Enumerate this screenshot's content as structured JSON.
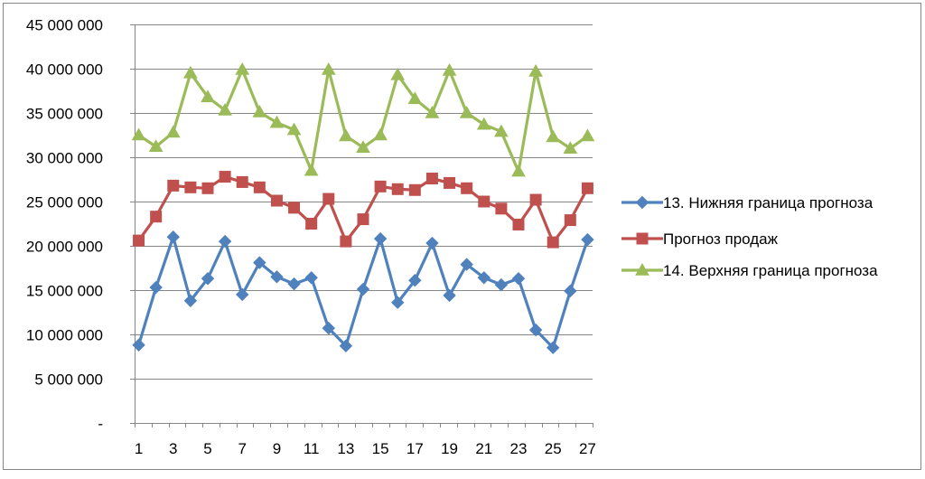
{
  "chart_data": {
    "type": "line",
    "x": [
      1,
      2,
      3,
      4,
      5,
      6,
      7,
      8,
      9,
      10,
      11,
      12,
      13,
      14,
      15,
      16,
      17,
      18,
      19,
      20,
      21,
      22,
      23,
      24,
      25,
      26,
      27
    ],
    "x_tick_labels": [
      "1",
      "3",
      "5",
      "7",
      "9",
      "11",
      "13",
      "15",
      "17",
      "19",
      "21",
      "23",
      "25",
      "27"
    ],
    "y_tick_labels": [
      "-",
      "5 000 000",
      "10 000 000",
      "15 000 000",
      "20 000 000",
      "25 000 000",
      "30 000 000",
      "35 000 000",
      "40 000 000",
      "45 000 000"
    ],
    "ylim": [
      0,
      45000000
    ],
    "y_tick_step": 5000000,
    "grid": "horizontal",
    "legend_position": "right",
    "series": [
      {
        "name": "13. Нижняя граница прогноза",
        "color": "#4F81BD",
        "marker": "diamond",
        "values": [
          8800000,
          15300000,
          21000000,
          13800000,
          16300000,
          20500000,
          14500000,
          18100000,
          16500000,
          15700000,
          16400000,
          10700000,
          8700000,
          15100000,
          20800000,
          13600000,
          16100000,
          20300000,
          14400000,
          17900000,
          16400000,
          15600000,
          16300000,
          10500000,
          8500000,
          14900000,
          20700000
        ]
      },
      {
        "name": "Прогноз продаж",
        "color": "#C0504D",
        "marker": "square",
        "values": [
          20600000,
          23300000,
          26800000,
          26600000,
          26500000,
          27800000,
          27200000,
          26600000,
          25100000,
          24300000,
          22500000,
          25300000,
          20500000,
          23000000,
          26700000,
          26400000,
          26300000,
          27600000,
          27100000,
          26500000,
          25000000,
          24200000,
          22400000,
          25200000,
          20400000,
          22900000,
          26500000
        ]
      },
      {
        "name": "14. Верхняя граница прогноза",
        "color": "#9BBB59",
        "marker": "triangle",
        "values": [
          32500000,
          31200000,
          32800000,
          39500000,
          36800000,
          35300000,
          39900000,
          35100000,
          33900000,
          33100000,
          28500000,
          39900000,
          32400000,
          31100000,
          32500000,
          39300000,
          36600000,
          35000000,
          39800000,
          35000000,
          33700000,
          32900000,
          28400000,
          39700000,
          32300000,
          31000000,
          32400000
        ]
      }
    ]
  }
}
